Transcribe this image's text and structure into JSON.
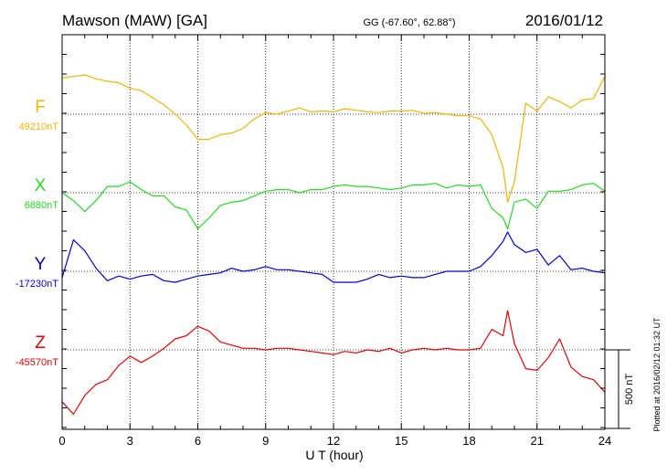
{
  "header": {
    "station": "Mawson (MAW)  [GA]",
    "coords": "GG (-67.60°,  62.88°)",
    "date": "2016/01/12"
  },
  "plotted_note": "Plotted at 2016/02/12 01:32 UT",
  "colors": {
    "F": "#f5b400",
    "X": "#22dd22",
    "Y": "#0000dd",
    "Z": "#ee0000",
    "axis": "#000000"
  },
  "chart_data": {
    "type": "line",
    "title": "Mawson (MAW)  [GA]",
    "xlabel": "U T (hour)",
    "xlim": [
      0,
      24
    ],
    "xticks": [
      0,
      3,
      6,
      9,
      12,
      15,
      18,
      21,
      24
    ],
    "grid": true,
    "scale_bar": {
      "label": "500 nT",
      "value": 500
    },
    "series": [
      {
        "name": "F",
        "baseline_label": "49210nT",
        "baseline": 49210,
        "x": [
          0,
          0.5,
          1,
          1.5,
          2,
          2.5,
          3,
          3.5,
          4,
          4.5,
          5,
          5.5,
          6,
          6.5,
          7,
          7.5,
          8,
          8.5,
          9,
          9.5,
          10,
          10.5,
          11,
          11.5,
          12,
          12.5,
          13,
          13.5,
          14,
          14.5,
          15,
          15.5,
          16,
          16.5,
          17,
          17.5,
          18,
          18.5,
          19,
          19.5,
          19.7,
          20,
          20.5,
          21,
          21.5,
          22,
          22.5,
          23,
          23.5,
          24
        ],
        "values": [
          49440,
          49450,
          49460,
          49435,
          49420,
          49410,
          49375,
          49360,
          49315,
          49270,
          49210,
          49140,
          49050,
          49050,
          49080,
          49090,
          49120,
          49180,
          49220,
          49210,
          49230,
          49250,
          49225,
          49230,
          49225,
          49245,
          49235,
          49225,
          49220,
          49230,
          49230,
          49235,
          49215,
          49220,
          49210,
          49200,
          49200,
          49180,
          49080,
          48870,
          48650,
          48780,
          49280,
          49230,
          49320,
          49290,
          49250,
          49300,
          49310,
          49450
        ]
      },
      {
        "name": "X",
        "baseline_label": "6880nT",
        "baseline": 6880,
        "x": [
          0,
          0.5,
          1,
          1.5,
          2,
          2.5,
          3,
          3.5,
          4,
          4.5,
          5,
          5.5,
          6,
          6.5,
          7,
          7.5,
          8,
          8.5,
          9,
          9.5,
          10,
          10.5,
          11,
          11.5,
          12,
          12.5,
          13,
          13.5,
          14,
          14.5,
          15,
          15.5,
          16,
          16.5,
          17,
          17.5,
          18,
          18.5,
          19,
          19.5,
          19.7,
          20,
          20.5,
          21,
          21.5,
          22,
          22.5,
          23,
          23.5,
          24
        ],
        "values": [
          6880,
          6830,
          6760,
          6830,
          6920,
          6920,
          6950,
          6900,
          6860,
          6860,
          6790,
          6770,
          6650,
          6720,
          6800,
          6820,
          6830,
          6860,
          6890,
          6900,
          6900,
          6880,
          6900,
          6900,
          6920,
          6930,
          6920,
          6920,
          6910,
          6900,
          6910,
          6930,
          6930,
          6940,
          6910,
          6930,
          6920,
          6930,
          6780,
          6720,
          6650,
          6820,
          6840,
          6780,
          6890,
          6890,
          6900,
          6930,
          6940,
          6890
        ]
      },
      {
        "name": "Y",
        "baseline_label": "-17230nT",
        "baseline": -17230,
        "x": [
          0,
          0.5,
          1,
          1.5,
          2,
          2.5,
          3,
          3.5,
          4,
          4.5,
          5,
          5.5,
          6,
          6.5,
          7,
          7.5,
          8,
          8.5,
          9,
          9.5,
          10,
          10.5,
          11,
          11.5,
          12,
          12.5,
          13,
          13.5,
          14,
          14.5,
          15,
          15.5,
          16,
          16.5,
          17,
          17.5,
          18,
          18.5,
          19,
          19.5,
          19.7,
          20,
          20.5,
          21,
          21.5,
          22,
          22.5,
          23,
          23.5,
          24
        ],
        "values": [
          -17270,
          -17030,
          -17100,
          -17210,
          -17290,
          -17260,
          -17280,
          -17260,
          -17250,
          -17290,
          -17300,
          -17280,
          -17260,
          -17250,
          -17240,
          -17210,
          -17230,
          -17220,
          -17200,
          -17220,
          -17220,
          -17230,
          -17240,
          -17250,
          -17300,
          -17300,
          -17300,
          -17280,
          -17250,
          -17270,
          -17260,
          -17270,
          -17270,
          -17250,
          -17230,
          -17230,
          -17230,
          -17200,
          -17130,
          -17040,
          -16980,
          -17060,
          -17110,
          -17090,
          -17190,
          -17130,
          -17220,
          -17210,
          -17230,
          -17240
        ]
      },
      {
        "name": "Z",
        "baseline_label": "-45570nT",
        "baseline": -45570,
        "x": [
          0,
          0.5,
          1,
          1.5,
          2,
          2.5,
          3,
          3.5,
          4,
          4.5,
          5,
          5.5,
          6,
          6.5,
          7,
          7.5,
          8,
          8.5,
          9,
          9.5,
          10,
          10.5,
          11,
          11.5,
          12,
          12.5,
          13,
          13.5,
          14,
          14.5,
          15,
          15.5,
          16,
          16.5,
          17,
          17.5,
          18,
          18.5,
          19,
          19.5,
          19.7,
          20,
          20.5,
          21,
          21.5,
          22,
          22.5,
          23,
          23.5,
          24
        ],
        "values": [
          -45900,
          -45980,
          -45860,
          -45790,
          -45760,
          -45670,
          -45610,
          -45650,
          -45610,
          -45560,
          -45500,
          -45480,
          -45420,
          -45450,
          -45520,
          -45540,
          -45560,
          -45560,
          -45570,
          -45560,
          -45560,
          -45570,
          -45580,
          -45590,
          -45600,
          -45580,
          -45590,
          -45570,
          -45580,
          -45560,
          -45590,
          -45570,
          -45560,
          -45570,
          -45560,
          -45570,
          -45570,
          -45560,
          -45440,
          -45480,
          -45320,
          -45530,
          -45690,
          -45700,
          -45620,
          -45500,
          -45680,
          -45740,
          -45760,
          -45840
        ]
      }
    ]
  }
}
